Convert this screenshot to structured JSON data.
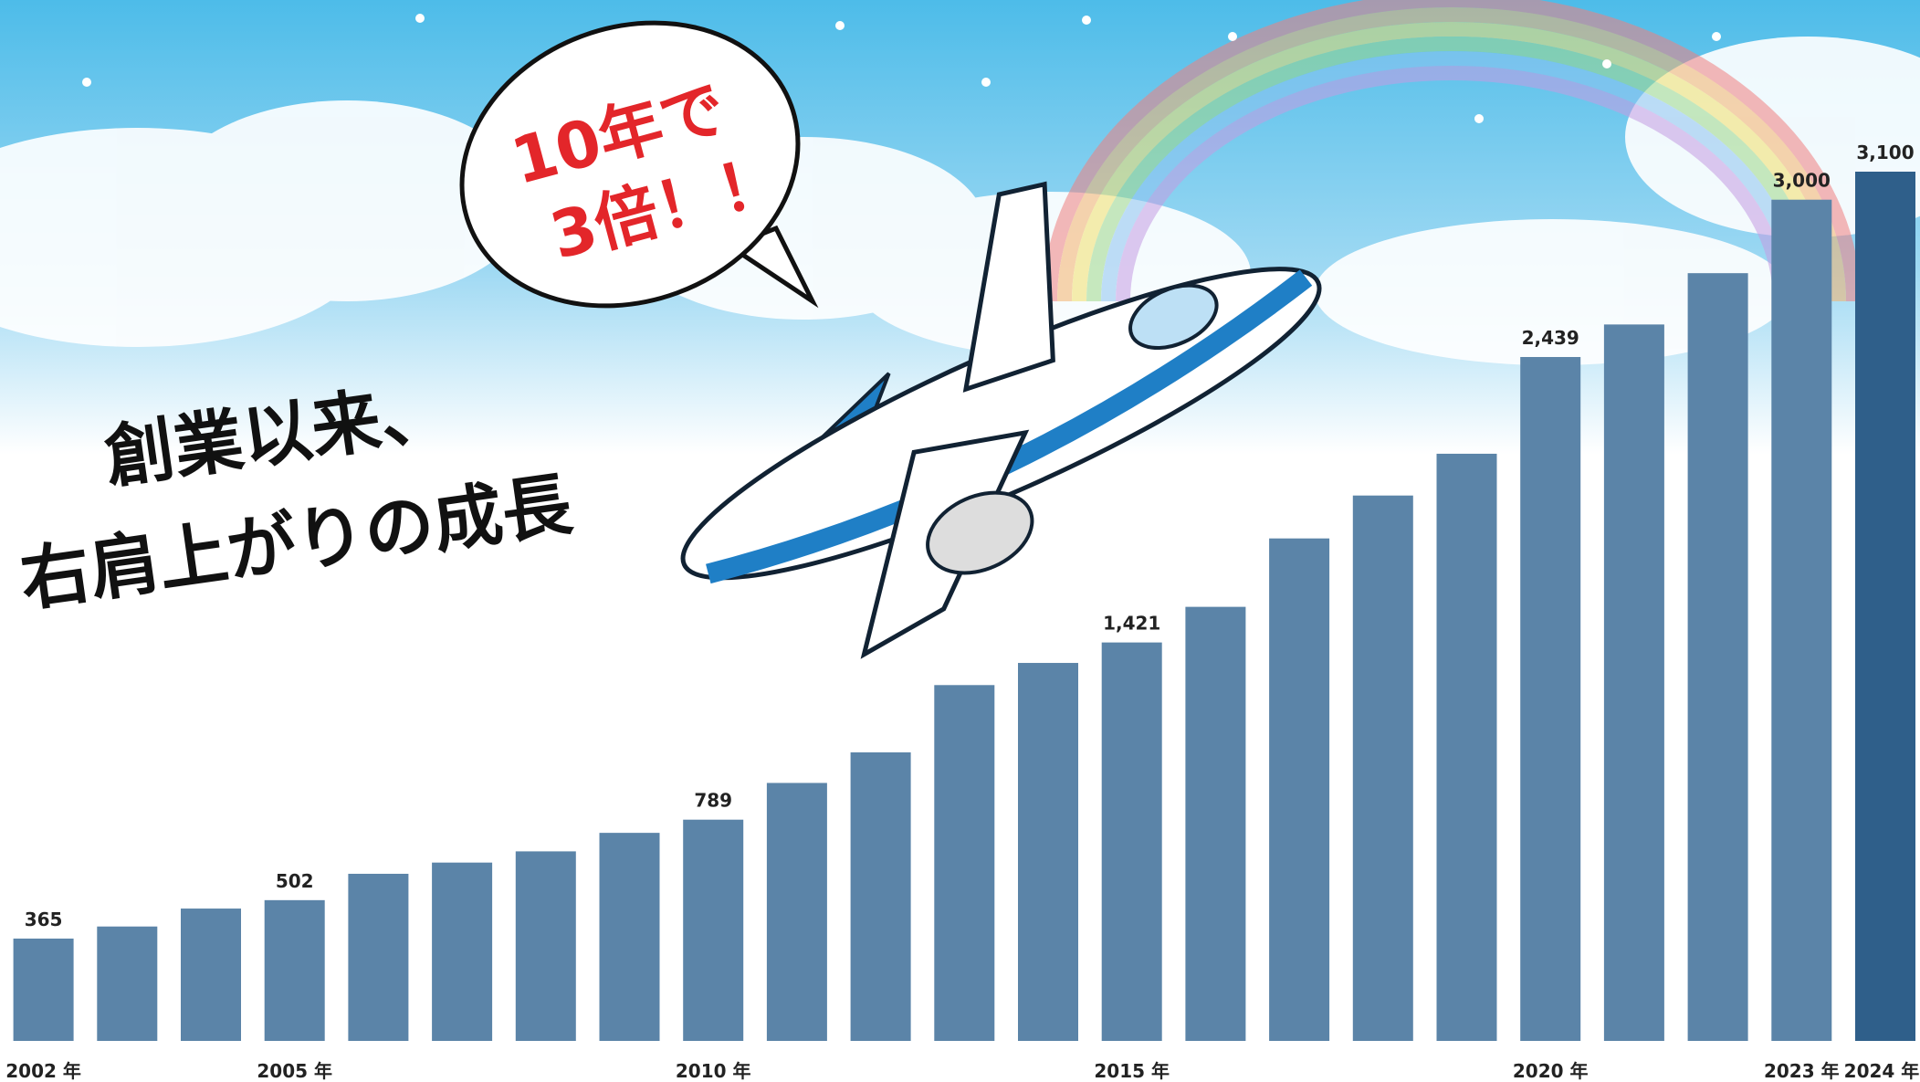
{
  "chart_data": {
    "type": "bar",
    "title": [
      "創業以来、",
      "右肩上がりの成長"
    ],
    "annotations": [
      "10年で",
      "3倍！！"
    ],
    "categories": [
      "2002 年",
      null,
      null,
      "2005 年",
      null,
      null,
      null,
      null,
      "2010 年",
      null,
      null,
      null,
      null,
      "2015 年",
      null,
      null,
      null,
      null,
      "2020 年",
      null,
      null,
      "2023 年",
      "2024 年"
    ],
    "values": [
      365,
      408,
      472,
      502,
      596,
      636,
      676,
      742,
      789,
      920,
      1029,
      1269,
      1348,
      1421,
      1548,
      1792,
      1945,
      2094,
      2439,
      2555,
      2738,
      3000,
      3100
    ],
    "value_labels": [
      "365",
      null,
      null,
      "502",
      null,
      null,
      null,
      null,
      "789",
      null,
      null,
      null,
      null,
      "1,421",
      null,
      null,
      null,
      null,
      "2,439",
      null,
      null,
      "3,000",
      "3,100"
    ],
    "colors": [
      "#5b84a8",
      "#5b84a8",
      "#5b84a8",
      "#5b84a8",
      "#5b84a8",
      "#5b84a8",
      "#5b84a8",
      "#5b84a8",
      "#5b84a8",
      "#5b84a8",
      "#5b84a8",
      "#5b84a8",
      "#5b84a8",
      "#5b84a8",
      "#5b84a8",
      "#5b84a8",
      "#5b84a8",
      "#5b84a8",
      "#5b84a8",
      "#5b84a8",
      "#5b84a8",
      "#5b84a8",
      "#2f5f8a"
    ]
  }
}
